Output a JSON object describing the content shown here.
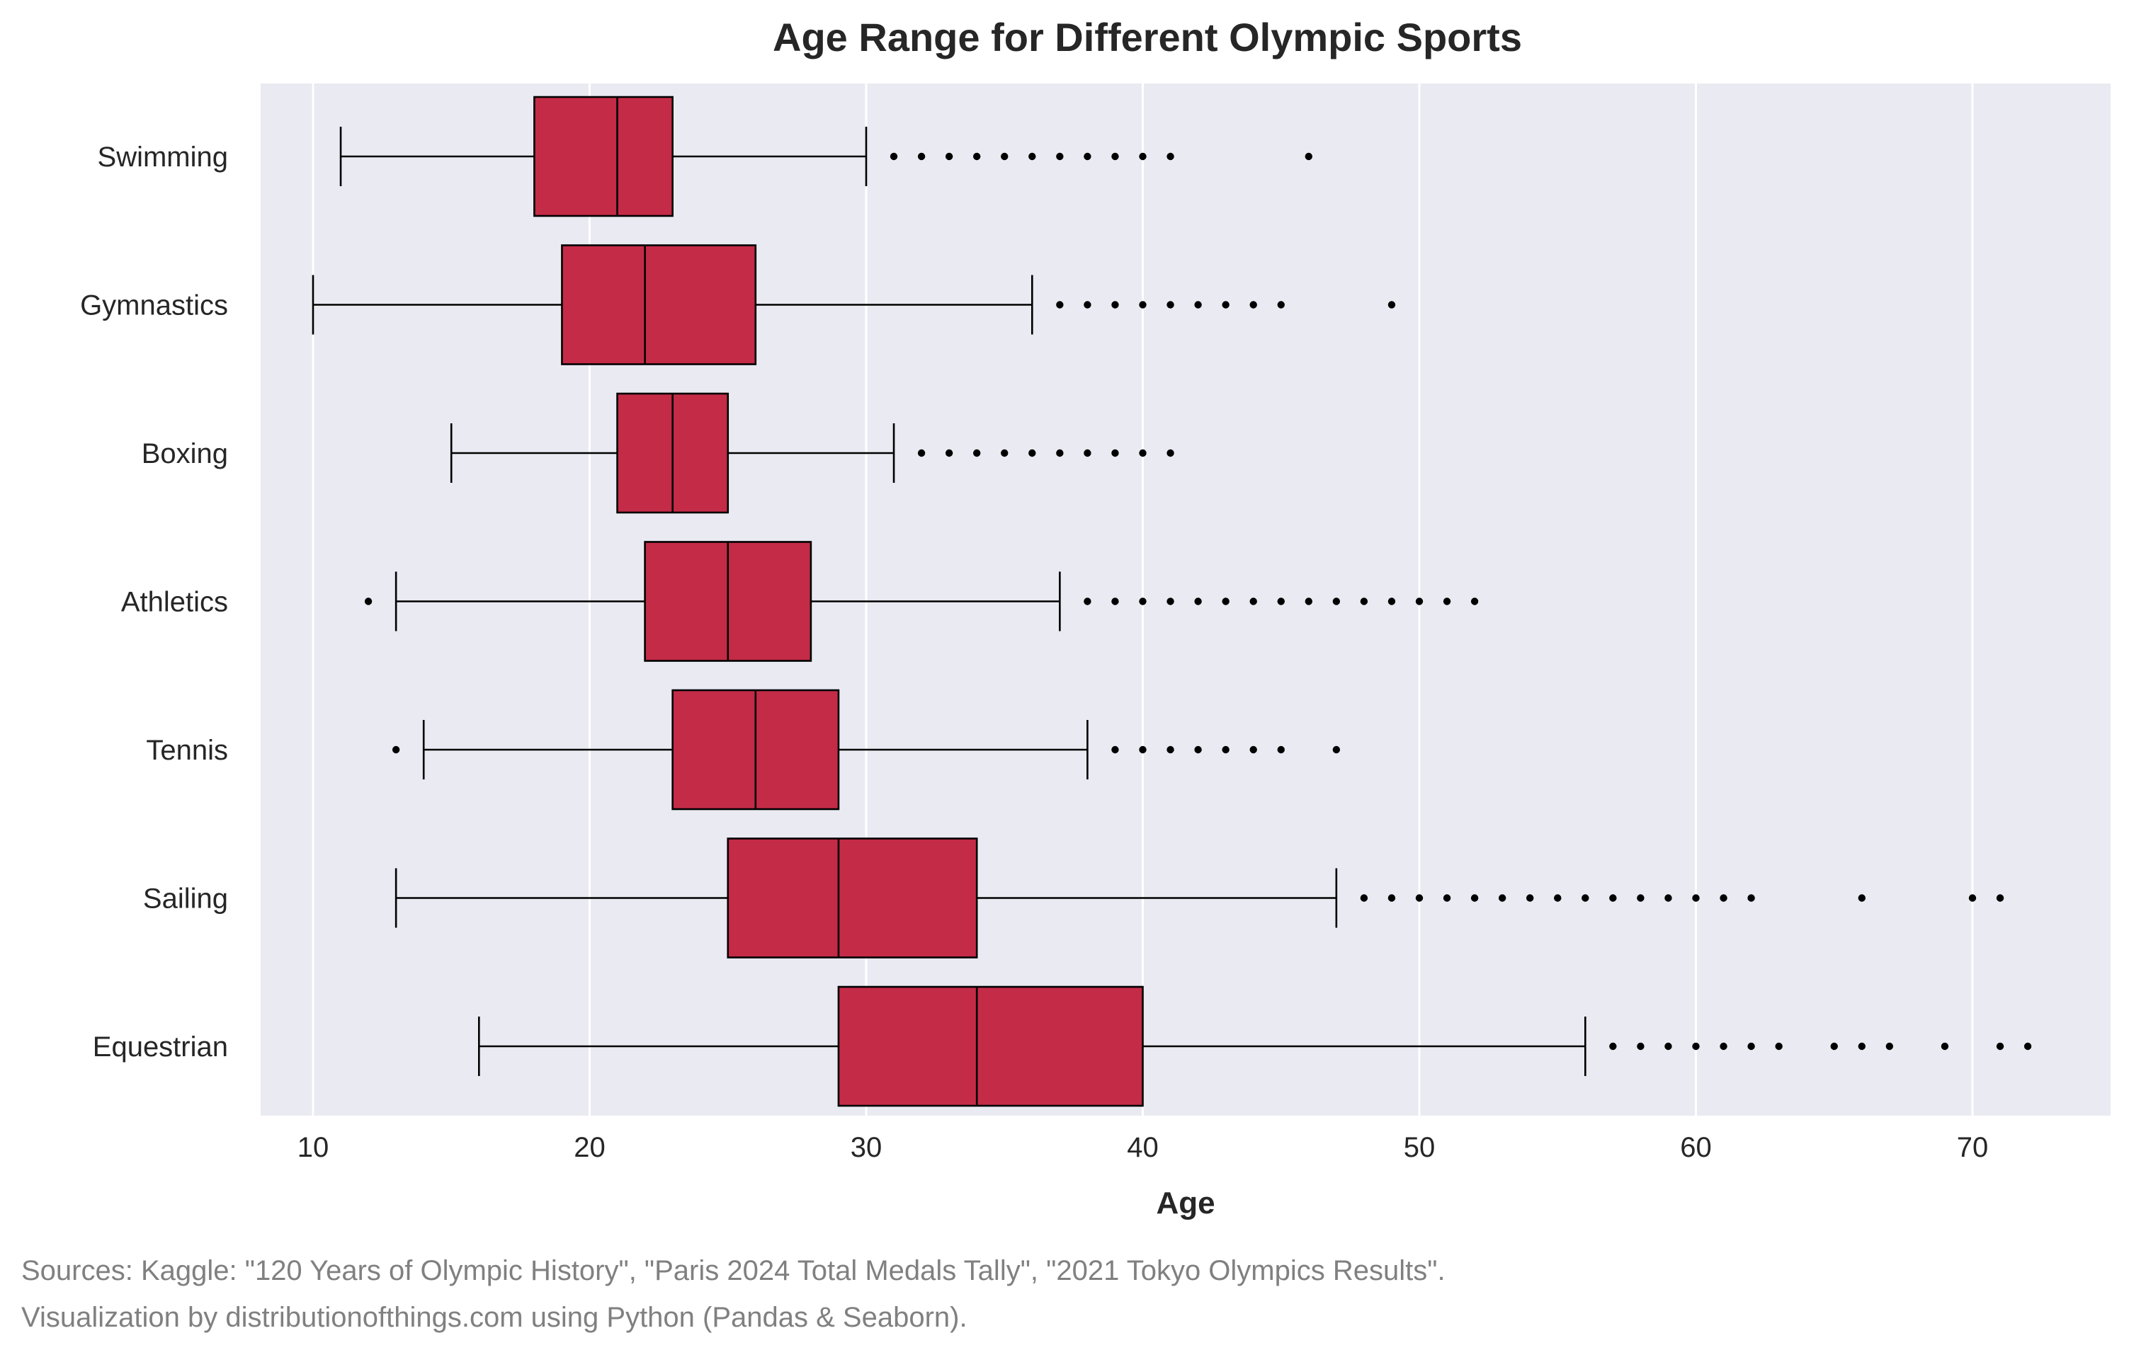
{
  "footer": {
    "sources": "Sources: Kaggle: \"120 Years of Olympic History\", \"Paris 2024 Total Medals Tally\", \"2021 Tokyo Olympics Results\".",
    "credit": "Visualization by distributionofthings.com using Python (Pandas & Seaborn)."
  },
  "chart_data": {
    "type": "boxplot",
    "orientation": "horizontal",
    "title": "Age Range for Different Olympic Sports",
    "xlabel": "Age",
    "ylabel": "",
    "xlim": [
      8,
      75
    ],
    "xticks": [
      10,
      20,
      30,
      40,
      50,
      60,
      70
    ],
    "grid": "x-major",
    "colors": {
      "box": "#c42b47",
      "plot_bg": "#eaeaf2",
      "grid": "#ffffff",
      "line": "#000000"
    },
    "categories": [
      "Swimming",
      "Gymnastics",
      "Boxing",
      "Athletics",
      "Tennis",
      "Sailing",
      "Equestrian"
    ],
    "boxes": [
      {
        "name": "Swimming",
        "whisker_low": 11,
        "q1": 18,
        "median": 21,
        "q3": 23,
        "whisker_high": 30,
        "outliers": [
          31,
          32,
          33,
          34,
          35,
          36,
          37,
          38,
          39,
          40,
          41,
          46
        ]
      },
      {
        "name": "Gymnastics",
        "whisker_low": 10,
        "q1": 19,
        "median": 22,
        "q3": 26,
        "whisker_high": 36,
        "outliers": [
          37,
          38,
          39,
          40,
          41,
          42,
          43,
          44,
          45,
          49
        ]
      },
      {
        "name": "Boxing",
        "whisker_low": 15,
        "q1": 21,
        "median": 23,
        "q3": 25,
        "whisker_high": 31,
        "outliers": [
          32,
          33,
          34,
          35,
          36,
          37,
          38,
          39,
          40,
          41
        ]
      },
      {
        "name": "Athletics",
        "whisker_low": 13,
        "q1": 22,
        "median": 25,
        "q3": 28,
        "whisker_high": 37,
        "outliers": [
          12,
          38,
          39,
          40,
          41,
          42,
          43,
          44,
          45,
          46,
          47,
          48,
          49,
          50,
          51,
          52
        ]
      },
      {
        "name": "Tennis",
        "whisker_low": 14,
        "q1": 23,
        "median": 26,
        "q3": 29,
        "whisker_high": 38,
        "outliers": [
          13,
          39,
          40,
          41,
          42,
          43,
          44,
          45,
          47
        ]
      },
      {
        "name": "Sailing",
        "whisker_low": 13,
        "q1": 25,
        "median": 29,
        "q3": 34,
        "whisker_high": 47,
        "outliers": [
          48,
          49,
          50,
          51,
          52,
          53,
          54,
          55,
          56,
          57,
          58,
          59,
          60,
          61,
          62,
          66,
          70,
          71
        ]
      },
      {
        "name": "Equestrian",
        "whisker_low": 16,
        "q1": 29,
        "median": 34,
        "q3": 40,
        "whisker_high": 56,
        "outliers": [
          57,
          58,
          59,
          60,
          61,
          62,
          63,
          65,
          66,
          67,
          69,
          71,
          72
        ]
      }
    ]
  }
}
